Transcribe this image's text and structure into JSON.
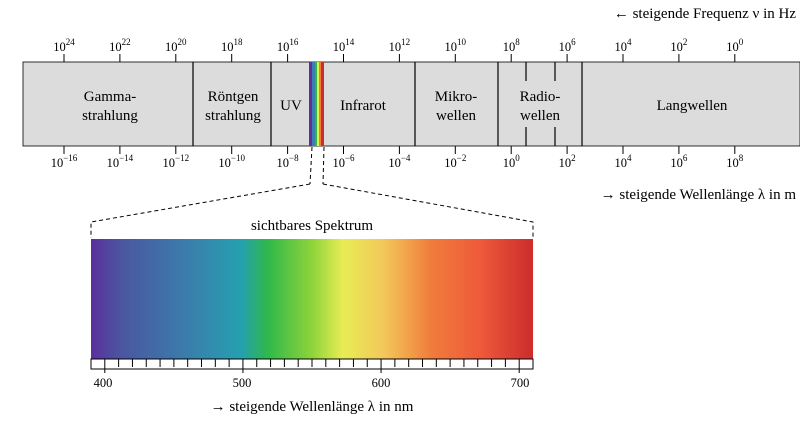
{
  "frequency_axis": {
    "caption": "← steigende Frequenz ν in Hz",
    "ticks": [
      {
        "base": "10",
        "exp": "24"
      },
      {
        "base": "10",
        "exp": "22"
      },
      {
        "base": "10",
        "exp": "20"
      },
      {
        "base": "10",
        "exp": "18"
      },
      {
        "base": "10",
        "exp": "16"
      },
      {
        "base": "10",
        "exp": "14"
      },
      {
        "base": "10",
        "exp": "12"
      },
      {
        "base": "10",
        "exp": "10"
      },
      {
        "base": "10",
        "exp": "8"
      },
      {
        "base": "10",
        "exp": "6"
      },
      {
        "base": "10",
        "exp": "4"
      },
      {
        "base": "10",
        "exp": "2"
      },
      {
        "base": "10",
        "exp": "0"
      }
    ]
  },
  "wavelength_axis": {
    "caption": "→ steigende Wellenlänge λ in m",
    "ticks": [
      {
        "base": "10",
        "exp": "−16"
      },
      {
        "base": "10",
        "exp": "−14"
      },
      {
        "base": "10",
        "exp": "−12"
      },
      {
        "base": "10",
        "exp": "−10"
      },
      {
        "base": "10",
        "exp": "−8"
      },
      {
        "base": "10",
        "exp": "−6"
      },
      {
        "base": "10",
        "exp": "−4"
      },
      {
        "base": "10",
        "exp": "−2"
      },
      {
        "base": "10",
        "exp": "0"
      },
      {
        "base": "10",
        "exp": "2"
      },
      {
        "base": "10",
        "exp": "4"
      },
      {
        "base": "10",
        "exp": "6"
      },
      {
        "base": "10",
        "exp": "8"
      }
    ]
  },
  "bands": {
    "gamma": [
      "Gamma-",
      "strahlung"
    ],
    "roentgen": [
      "Röntgen",
      "strahlung"
    ],
    "uv": [
      "UV"
    ],
    "infrarot": [
      "Infrarot"
    ],
    "mikro": [
      "Mikro-",
      "wellen"
    ],
    "radio": [
      "Radio-",
      "wellen"
    ],
    "lang": [
      "Langwellen"
    ]
  },
  "visible": {
    "title": "sichtbares Spektrum",
    "caption": "→ steigende Wellenlänge λ in nm",
    "tick_labels": [
      "400",
      "500",
      "600",
      "700"
    ]
  },
  "colors": {
    "band_fill": "#dcdcdc",
    "spectrum_stops": [
      "#5b2f9c",
      "#4a57a0",
      "#2e8db0",
      "#25a0b0",
      "#2fb84a",
      "#8ed43a",
      "#e8ec55",
      "#f3c95a",
      "#f07c3c",
      "#ee5a3a",
      "#cc2c2c"
    ]
  }
}
